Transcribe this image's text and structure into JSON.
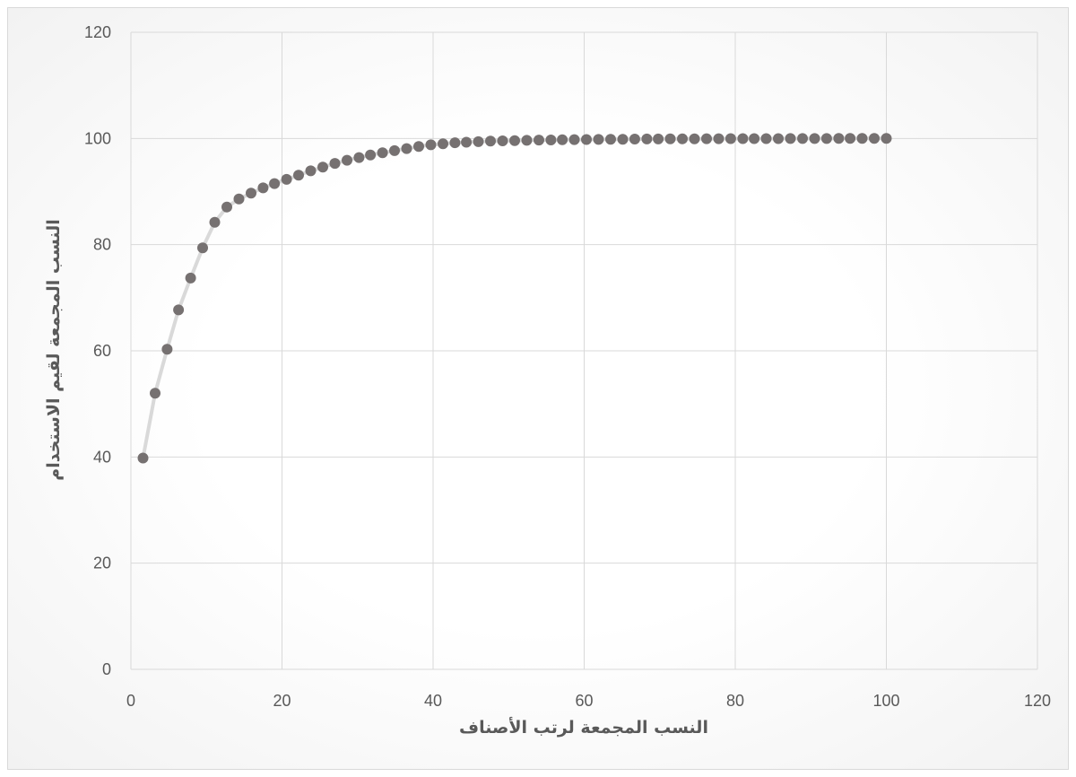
{
  "chart_data": {
    "type": "scatter",
    "title": "",
    "xlabel": "النسب المجمعة لرتب الأصناف",
    "ylabel": "النسب المجمعة لقيم الاستخدام",
    "xlim": [
      0,
      120
    ],
    "ylim": [
      0,
      120
    ],
    "x_ticks": [
      0,
      20,
      40,
      60,
      80,
      100,
      120
    ],
    "y_ticks": [
      0,
      20,
      40,
      60,
      80,
      100,
      120
    ],
    "grid": true,
    "legend": "none",
    "colors": {
      "marker": "#767171",
      "line": "#d9d9d9",
      "grid": "#d9d9d9",
      "text": "#595959"
    },
    "series": [
      {
        "x": [
          1.6,
          3.2,
          4.8,
          6.3,
          7.9,
          9.5,
          11.1,
          12.7,
          14.3,
          15.9,
          17.5,
          19.0,
          20.6,
          22.2,
          23.8,
          25.4,
          27.0,
          28.6,
          30.2,
          31.7,
          33.3,
          34.9,
          36.5,
          38.1,
          39.7,
          41.3,
          42.9,
          44.4,
          46.0,
          47.6,
          49.2,
          50.8,
          52.4,
          54.0,
          55.6,
          57.1,
          58.7,
          60.3,
          61.9,
          63.5,
          65.1,
          66.7,
          68.3,
          69.8,
          71.4,
          73.0,
          74.6,
          76.2,
          77.8,
          79.4,
          81.0,
          82.5,
          84.1,
          85.7,
          87.3,
          88.9,
          90.5,
          92.1,
          93.7,
          95.2,
          96.8,
          98.4,
          100.0
        ],
        "y": [
          39.8,
          52.0,
          60.3,
          67.7,
          73.7,
          79.4,
          84.2,
          87.1,
          88.6,
          89.7,
          90.7,
          91.5,
          92.3,
          93.1,
          93.9,
          94.6,
          95.3,
          95.9,
          96.4,
          96.9,
          97.3,
          97.7,
          98.1,
          98.5,
          98.8,
          99.0,
          99.2,
          99.3,
          99.4,
          99.5,
          99.55,
          99.6,
          99.65,
          99.7,
          99.72,
          99.75,
          99.78,
          99.8,
          99.82,
          99.84,
          99.86,
          99.88,
          99.9,
          99.91,
          99.92,
          99.93,
          99.94,
          99.95,
          99.96,
          99.97,
          99.97,
          99.98,
          99.98,
          99.98,
          99.99,
          99.99,
          99.99,
          99.99,
          100.0,
          100.0,
          100.0,
          100.0,
          100.0
        ]
      }
    ]
  }
}
